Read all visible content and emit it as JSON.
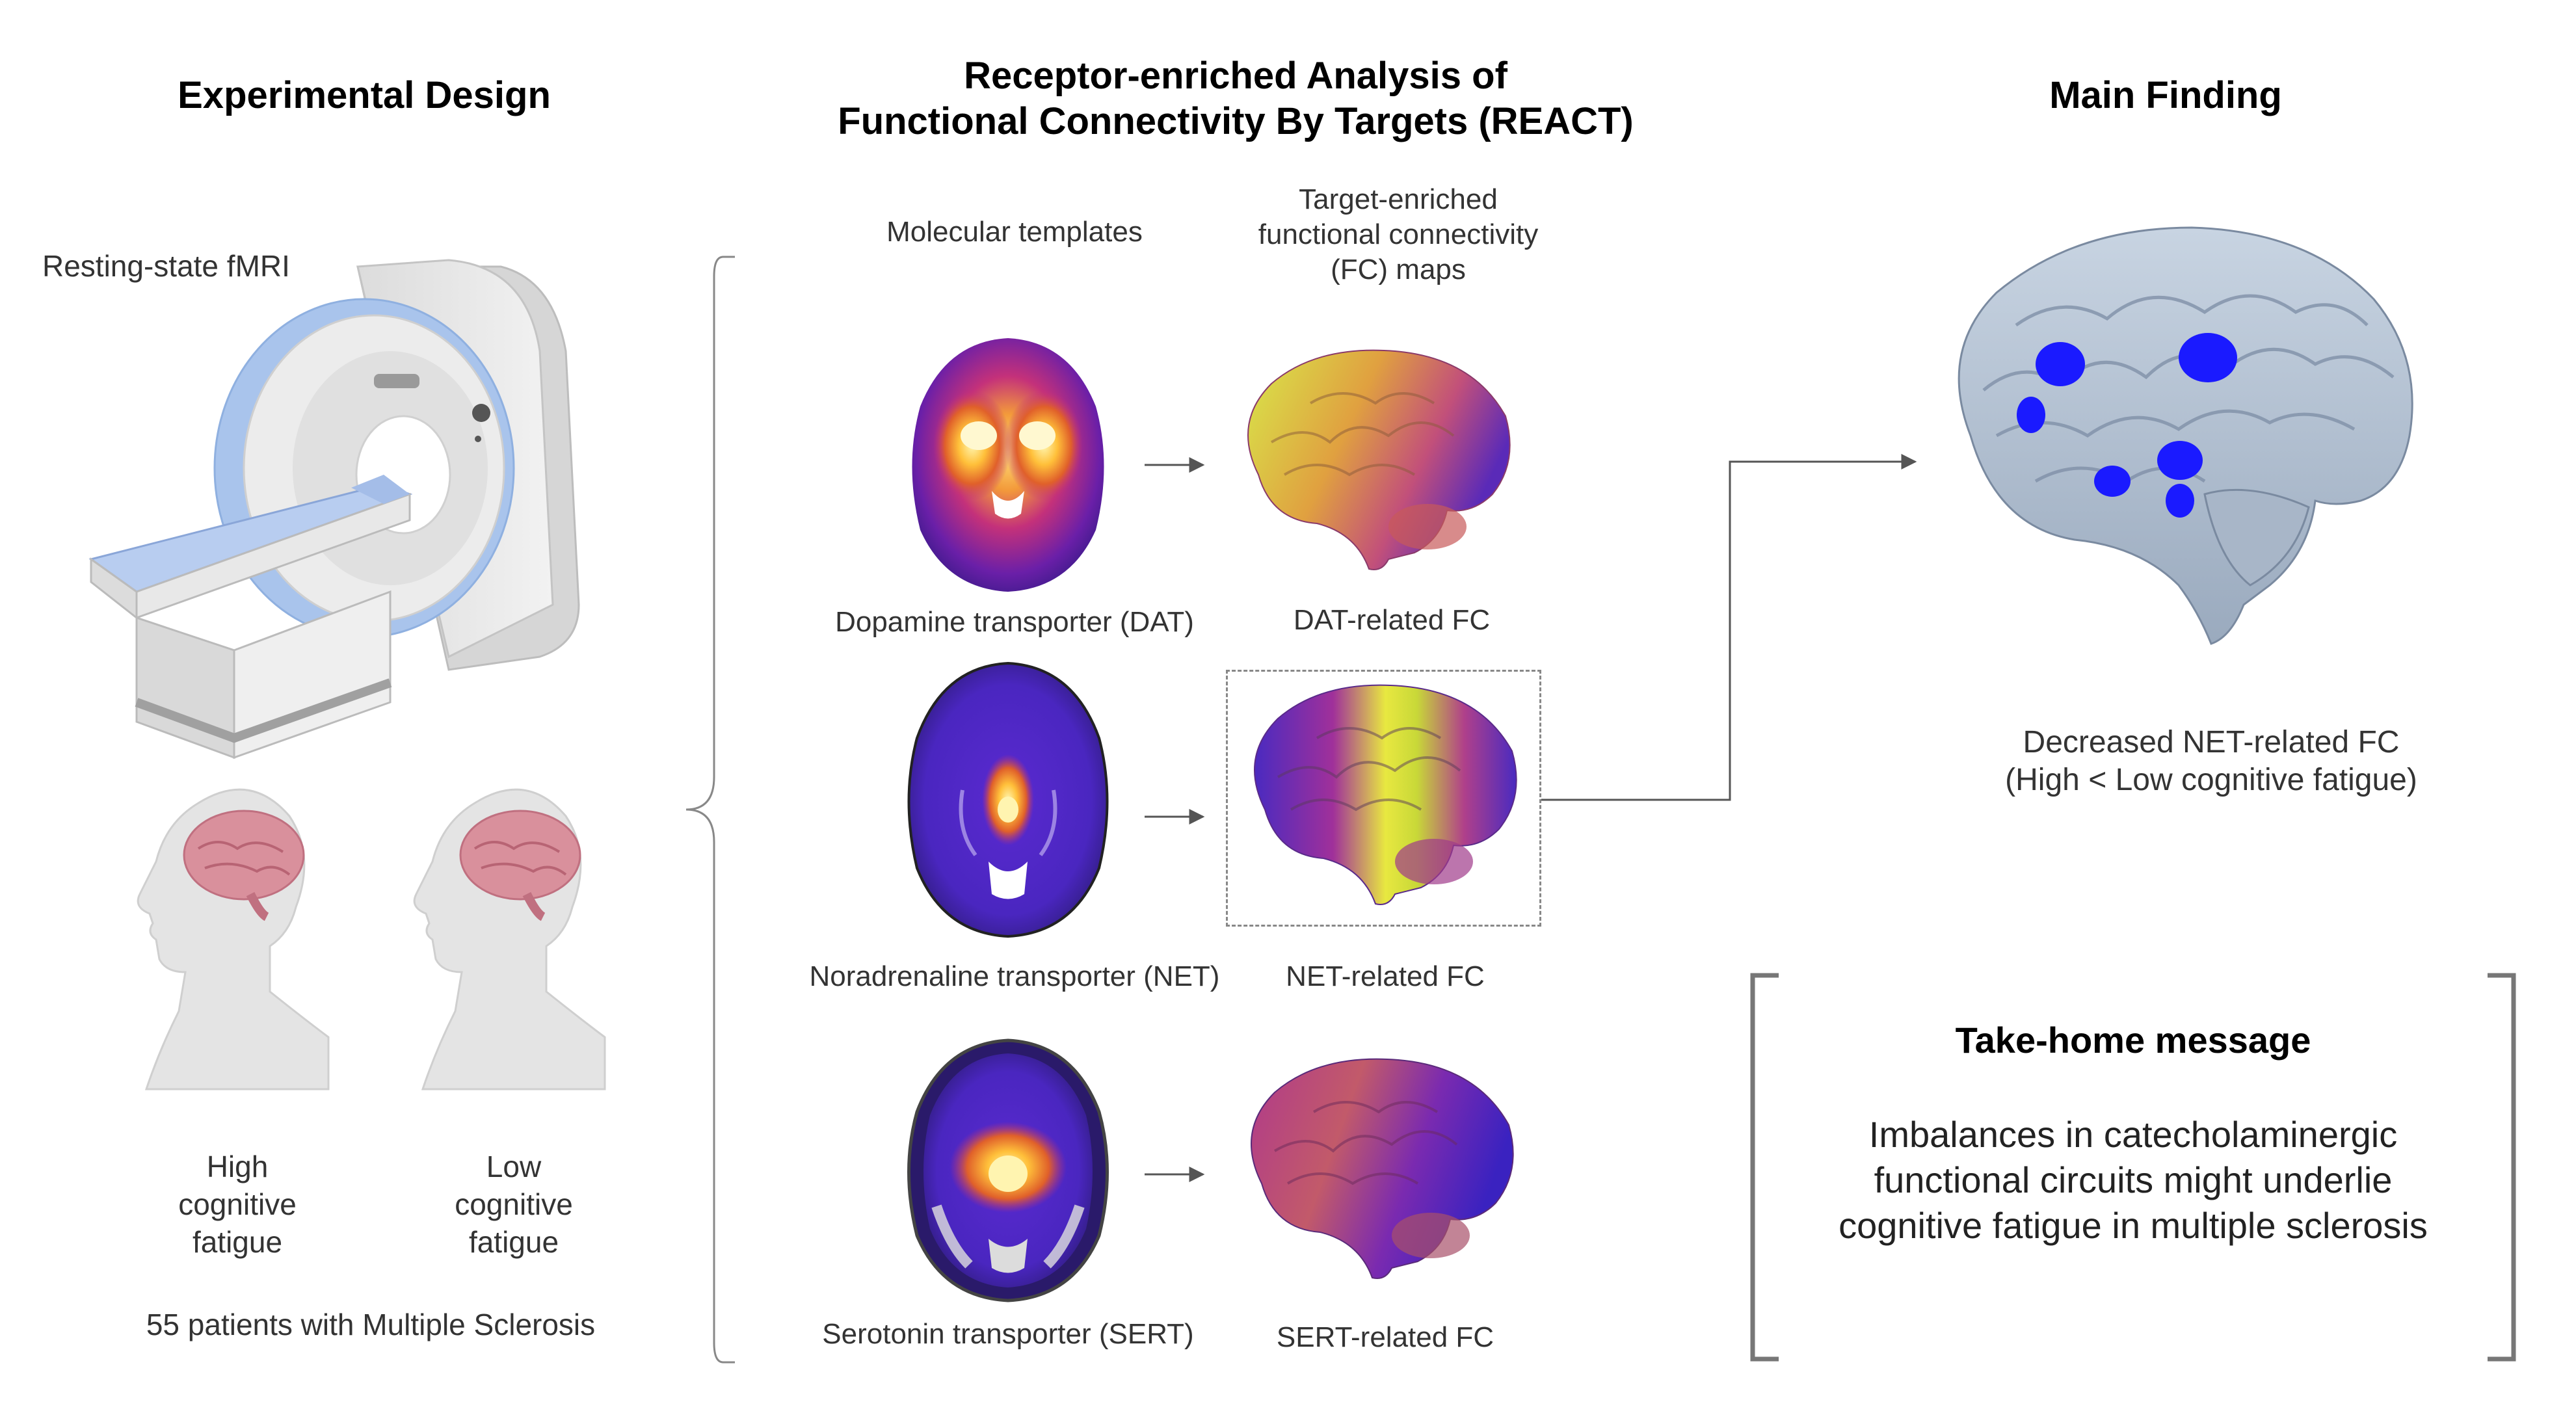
{
  "design": {
    "title": "Experimental Design",
    "scanner_label": "Resting-state fMRI",
    "group_high": [
      "High",
      "cognitive",
      "fatigue"
    ],
    "group_low": [
      "Low",
      "cognitive",
      "fatigue"
    ],
    "patients": "55 patients with Multiple Sclerosis"
  },
  "react": {
    "title_line1": "Receptor-enriched Analysis of",
    "title_line2": "Functional Connectivity  By Targets (REACT)",
    "col_templates": "Molecular templates",
    "col_maps": [
      "Target-enriched",
      "functional connectivity",
      "(FC) maps"
    ],
    "rows": [
      {
        "template": "Dopamine transporter (DAT)",
        "map": "DAT-related FC"
      },
      {
        "template": "Noradrenaline transporter (NET)",
        "map": "NET-related FC"
      },
      {
        "template": "Serotonin transporter (SERT)",
        "map": "SERT-related FC"
      }
    ]
  },
  "finding": {
    "title": "Main Finding",
    "caption_line1": "Decreased NET-related FC",
    "caption_line2": "(High < Low cognitive fatigue)"
  },
  "takehome": {
    "title": "Take-home message",
    "lines": [
      "Imbalances in catecholaminergic",
      "functional circuits might underlie",
      "cognitive fatigue in multiple sclerosis"
    ]
  },
  "colors": {
    "scanner_ring": "#a9c4ec",
    "scanner_body": "#e6e6e6",
    "head_skin": "#e4e4e4",
    "brain_pink": "#d9909c",
    "finding_brain": "#b8c6d6",
    "finding_blobs": "#1a1aff",
    "bracket": "#777777"
  }
}
